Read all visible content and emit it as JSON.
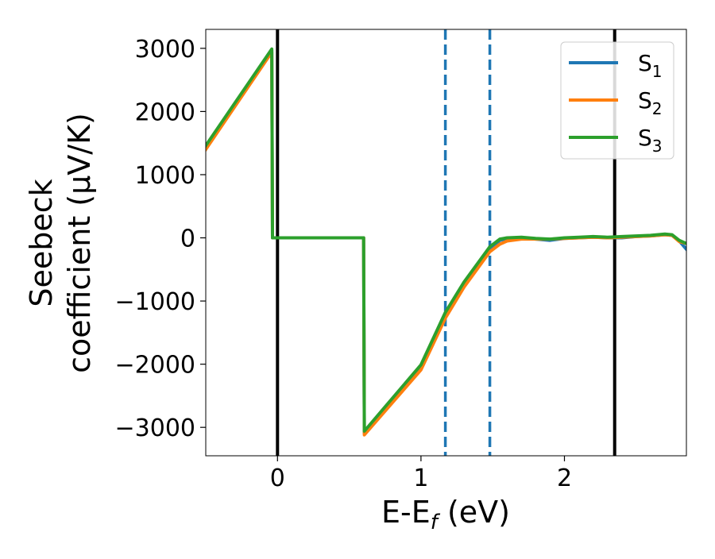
{
  "chart_data": {
    "type": "line",
    "xlabel": "E-E_f (eV)",
    "xlabel_parts": {
      "pre": "E-E",
      "sub": "f",
      "post": " (eV)"
    },
    "ylabel": "Seebeck coefficient  (μV/K)",
    "ylabel_lines": [
      "Seebeck",
      "coefficient  (μV/K)"
    ],
    "xlim": [
      -0.5,
      2.85
    ],
    "ylim": [
      -3450,
      3300
    ],
    "xticks": [
      0,
      1,
      2
    ],
    "yticks": [
      -3000,
      -2000,
      -1000,
      0,
      1000,
      2000,
      3000
    ],
    "ytick_labels": [
      "−3000",
      "−2000",
      "−1000",
      "0",
      "1000",
      "2000",
      "3000"
    ],
    "grid": false,
    "legend_position": "top-right",
    "vlines": [
      {
        "x": 0.0,
        "color": "#000000",
        "style": "solid"
      },
      {
        "x": 2.35,
        "color": "#000000",
        "style": "solid"
      },
      {
        "x": 1.17,
        "color": "#1f77b4",
        "style": "dashed"
      },
      {
        "x": 1.48,
        "color": "#1f77b4",
        "style": "dashed"
      }
    ],
    "series": [
      {
        "name": "S_1",
        "base": "S",
        "sub": "1",
        "color": "#1f77b4",
        "x": [
          -0.5,
          -0.04,
          -0.035,
          0.6,
          0.605,
          1.0,
          1.17,
          1.3,
          1.48,
          1.55,
          1.6,
          1.7,
          1.8,
          1.9,
          2.0,
          2.1,
          2.2,
          2.3,
          2.4,
          2.5,
          2.6,
          2.7,
          2.75,
          2.8,
          2.85
        ],
        "y": [
          1450,
          2970,
          0,
          0,
          -3090,
          -2030,
          -1230,
          -740,
          -170,
          -40,
          -10,
          0,
          -20,
          -40,
          -10,
          0,
          10,
          0,
          0,
          20,
          30,
          50,
          40,
          -50,
          -180
        ]
      },
      {
        "name": "S_2",
        "base": "S",
        "sub": "2",
        "color": "#ff7f0e",
        "x": [
          -0.5,
          -0.04,
          -0.035,
          0.6,
          0.605,
          1.0,
          1.17,
          1.3,
          1.48,
          1.55,
          1.6,
          1.7,
          1.8,
          1.9,
          2.0,
          2.1,
          2.2,
          2.3,
          2.4,
          2.5,
          2.6,
          2.7,
          2.75,
          2.8,
          2.85
        ],
        "y": [
          1400,
          2940,
          0,
          0,
          -3120,
          -2090,
          -1270,
          -780,
          -220,
          -100,
          -50,
          -20,
          -20,
          -20,
          -10,
          0,
          10,
          0,
          10,
          20,
          30,
          50,
          40,
          -60,
          -90
        ]
      },
      {
        "name": "S_3",
        "base": "S",
        "sub": "3",
        "color": "#2ca02c",
        "x": [
          -0.5,
          -0.04,
          -0.035,
          0.6,
          0.605,
          1.0,
          1.17,
          1.3,
          1.48,
          1.55,
          1.6,
          1.7,
          1.8,
          1.9,
          2.0,
          2.1,
          2.2,
          2.3,
          2.4,
          2.5,
          2.6,
          2.7,
          2.75,
          2.8,
          2.85
        ],
        "y": [
          1460,
          2990,
          0,
          0,
          -3060,
          -2010,
          -1180,
          -700,
          -140,
          -20,
          0,
          10,
          -10,
          -20,
          0,
          10,
          20,
          10,
          20,
          30,
          40,
          60,
          50,
          -40,
          -90
        ]
      }
    ]
  }
}
